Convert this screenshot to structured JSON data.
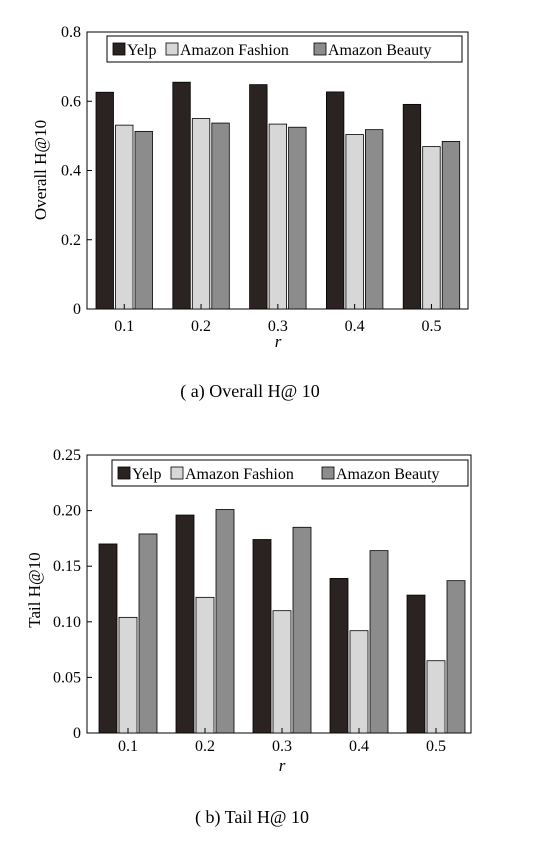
{
  "charts": [
    {
      "caption": "( a) Overall  H@ 10",
      "chart_data": {
        "type": "bar",
        "categories": [
          "0.1",
          "0.2",
          "0.3",
          "0.4",
          "0.5"
        ],
        "series": [
          {
            "name": "Yelp",
            "values": [
              0.626,
              0.655,
              0.648,
              0.627,
              0.591
            ]
          },
          {
            "name": "Amazon Fashion",
            "values": [
              0.531,
              0.55,
              0.534,
              0.504,
              0.469
            ]
          },
          {
            "name": "Amazon Beauty",
            "values": [
              0.513,
              0.537,
              0.525,
              0.518,
              0.484
            ]
          }
        ],
        "xlabel": "r",
        "ylabel": "Overall H@10",
        "ylim": [
          0,
          0.8
        ],
        "yticks": [
          "0",
          "0.2",
          "0.4",
          "0.6",
          "0.8"
        ],
        "legend": "top-right",
        "grid": false
      }
    },
    {
      "caption": "( b) Tail  H@ 10",
      "chart_data": {
        "type": "bar",
        "categories": [
          "0.1",
          "0.2",
          "0.3",
          "0.4",
          "0.5"
        ],
        "series": [
          {
            "name": "Yelp",
            "values": [
              0.17,
              0.196,
              0.174,
              0.139,
              0.124
            ]
          },
          {
            "name": "Amazon Fashion",
            "values": [
              0.104,
              0.122,
              0.11,
              0.092,
              0.065
            ]
          },
          {
            "name": "Amazon Beauty",
            "values": [
              0.179,
              0.201,
              0.185,
              0.164,
              0.137
            ]
          }
        ],
        "xlabel": "r",
        "ylabel": "Tail H@10",
        "ylim": [
          0,
          0.25
        ],
        "yticks": [
          "0",
          "0.05",
          "0.10",
          "0.15",
          "0.20",
          "0.25"
        ],
        "legend": "top-right",
        "grid": false
      }
    }
  ],
  "colors": {
    "Yelp": "#2b2321",
    "Amazon Fashion": "#d7d7d7",
    "Amazon Beauty": "#8c8c8c"
  }
}
